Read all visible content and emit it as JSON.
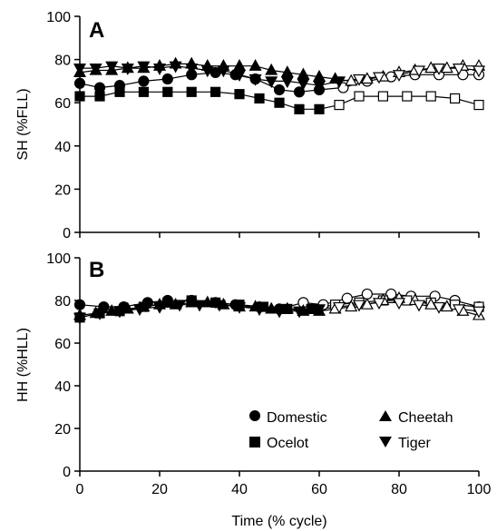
{
  "figure": {
    "xlabel": "Time (% cycle)",
    "x_ticks": [
      0,
      20,
      40,
      60,
      80,
      100
    ],
    "legend": {
      "placement": "bottom-right of panel B",
      "entries": [
        {
          "name": "Domestic",
          "marker": "circle"
        },
        {
          "name": "Cheetah",
          "marker": "triangle-up"
        },
        {
          "name": "Ocelot",
          "marker": "square"
        },
        {
          "name": "Tiger",
          "marker": "triangle-down"
        }
      ]
    },
    "styles": {
      "stance_fill": "#000000",
      "swing_fill": "#ffffff",
      "line_color": "#000000"
    }
  },
  "chart_data": [
    {
      "type": "line",
      "panel_label": "A",
      "title": "",
      "xlabel": "",
      "ylabel": "SH (%FLL)",
      "xlim": [
        0,
        100
      ],
      "ylim": [
        0,
        100
      ],
      "y_ticks": [
        0,
        20,
        40,
        60,
        80,
        100
      ],
      "grid": false,
      "series": [
        {
          "name": "Domestic",
          "marker": "circle",
          "stance_end": 63,
          "x": [
            0,
            5,
            10,
            16,
            22,
            28,
            34,
            39,
            44,
            50,
            55,
            60,
            66,
            72,
            78,
            84,
            90,
            96,
            100
          ],
          "y": [
            69,
            67,
            68,
            70,
            71,
            73,
            74,
            73,
            71,
            66,
            65,
            66,
            67,
            70,
            72,
            73,
            73,
            73,
            73
          ]
        },
        {
          "name": "Ocelot",
          "marker": "square",
          "stance_end": 60,
          "x": [
            0,
            5,
            10,
            16,
            22,
            28,
            34,
            40,
            45,
            50,
            55,
            60,
            65,
            70,
            76,
            82,
            88,
            94,
            100
          ],
          "y": [
            63,
            63,
            65,
            65,
            65,
            65,
            65,
            64,
            62,
            60,
            57,
            57,
            59,
            63,
            63,
            63,
            63,
            62,
            59
          ]
        },
        {
          "name": "Cheetah",
          "marker": "triangle-up",
          "stance_end": 64,
          "x": [
            0,
            4,
            8,
            12,
            16,
            20,
            24,
            28,
            32,
            36,
            40,
            44,
            48,
            52,
            56,
            60,
            64,
            68,
            72,
            76,
            80,
            84,
            88,
            92,
            96,
            100
          ],
          "y": [
            74,
            75,
            75,
            76,
            76,
            77,
            78,
            78,
            77,
            77,
            77,
            77,
            75,
            74,
            73,
            72,
            71,
            70,
            71,
            72,
            74,
            75,
            76,
            76,
            77,
            77
          ]
        },
        {
          "name": "Tiger",
          "marker": "triangle-down",
          "stance_end": 65,
          "x": [
            0,
            4,
            8,
            12,
            16,
            20,
            24,
            28,
            32,
            36,
            40,
            44,
            48,
            52,
            56,
            60,
            65,
            70,
            75,
            80,
            85,
            90,
            95,
            100
          ],
          "y": [
            76,
            76,
            77,
            76,
            77,
            76,
            77,
            76,
            75,
            75,
            73,
            71,
            70,
            70,
            69,
            68,
            70,
            71,
            72,
            73,
            75,
            76,
            76,
            75
          ]
        }
      ]
    },
    {
      "type": "line",
      "panel_label": "B",
      "title": "",
      "xlabel": "Time (% cycle)",
      "ylabel": "HH (%HLL)",
      "xlim": [
        0,
        100
      ],
      "ylim": [
        0,
        100
      ],
      "y_ticks": [
        0,
        20,
        40,
        60,
        80,
        100
      ],
      "grid": false,
      "series": [
        {
          "name": "Domestic",
          "marker": "circle",
          "stance_end": 55,
          "x": [
            0,
            6,
            11,
            17,
            22,
            28,
            34,
            39,
            45,
            50,
            56,
            61,
            67,
            72,
            78,
            83,
            89,
            94,
            100
          ],
          "y": [
            78,
            77,
            77,
            79,
            80,
            80,
            79,
            78,
            77,
            76,
            79,
            78,
            81,
            83,
            83,
            82,
            82,
            80,
            77
          ]
        },
        {
          "name": "Ocelot",
          "marker": "square",
          "stance_end": 58,
          "x": [
            0,
            5,
            10,
            16,
            22,
            28,
            34,
            40,
            46,
            52,
            58,
            64,
            70,
            76,
            82,
            88,
            94,
            100
          ],
          "y": [
            72,
            74,
            75,
            77,
            79,
            80,
            79,
            78,
            77,
            76,
            76,
            78,
            79,
            80,
            80,
            79,
            78,
            77
          ]
        },
        {
          "name": "Cheetah",
          "marker": "triangle-up",
          "stance_end": 62,
          "x": [
            0,
            4,
            8,
            12,
            16,
            20,
            24,
            28,
            32,
            36,
            40,
            44,
            48,
            52,
            56,
            60,
            64,
            68,
            72,
            76,
            80,
            84,
            88,
            92,
            96,
            100
          ],
          "y": [
            73,
            74,
            75,
            76,
            77,
            78,
            78,
            79,
            79,
            78,
            77,
            77,
            76,
            76,
            75,
            75,
            76,
            77,
            78,
            80,
            81,
            80,
            78,
            77,
            75,
            73
          ]
        },
        {
          "name": "Tiger",
          "marker": "triangle-down",
          "stance_end": 60,
          "x": [
            0,
            5,
            10,
            15,
            20,
            25,
            30,
            35,
            40,
            45,
            50,
            55,
            60,
            65,
            70,
            75,
            80,
            85,
            90,
            95,
            100
          ],
          "y": [
            72,
            74,
            75,
            76,
            77,
            78,
            78,
            78,
            77,
            76,
            75,
            75,
            76,
            77,
            78,
            79,
            79,
            78,
            77,
            76,
            75
          ]
        }
      ]
    }
  ]
}
